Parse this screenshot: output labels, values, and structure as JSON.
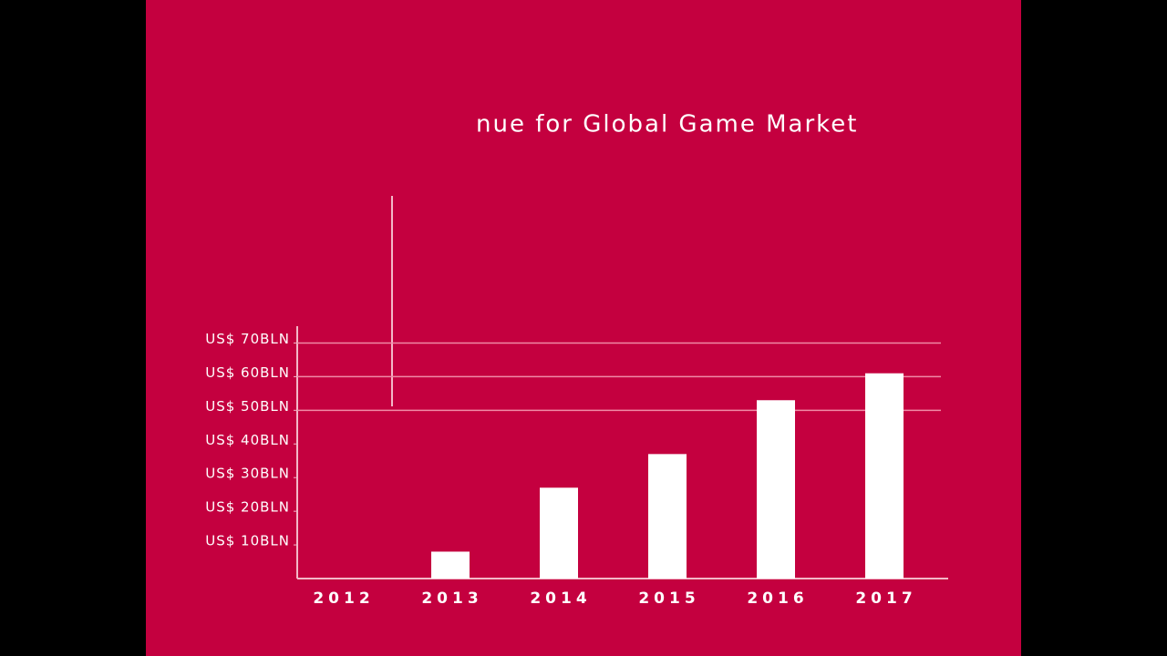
{
  "chart_data": {
    "type": "bar",
    "title": "nue for Global Game Market",
    "categories": [
      "2012",
      "2013",
      "2014",
      "2015",
      "2016",
      "2017"
    ],
    "values": [
      null,
      8,
      27,
      37,
      53,
      61
    ],
    "color": "#ffffff",
    "ylim": [
      0,
      75
    ],
    "yticks": [
      {
        "value": 10,
        "label": "US$ 10BLN"
      },
      {
        "value": 20,
        "label": "US$ 20BLN"
      },
      {
        "value": 30,
        "label": "US$ 30BLN"
      },
      {
        "value": 40,
        "label": "US$ 40BLN"
      },
      {
        "value": 50,
        "label": "US$ 50BLN"
      },
      {
        "value": 60,
        "label": "US$ 60BLN"
      },
      {
        "value": 70,
        "label": "US$ 70BLN"
      }
    ],
    "grid_lines": [
      50,
      60,
      70
    ]
  }
}
